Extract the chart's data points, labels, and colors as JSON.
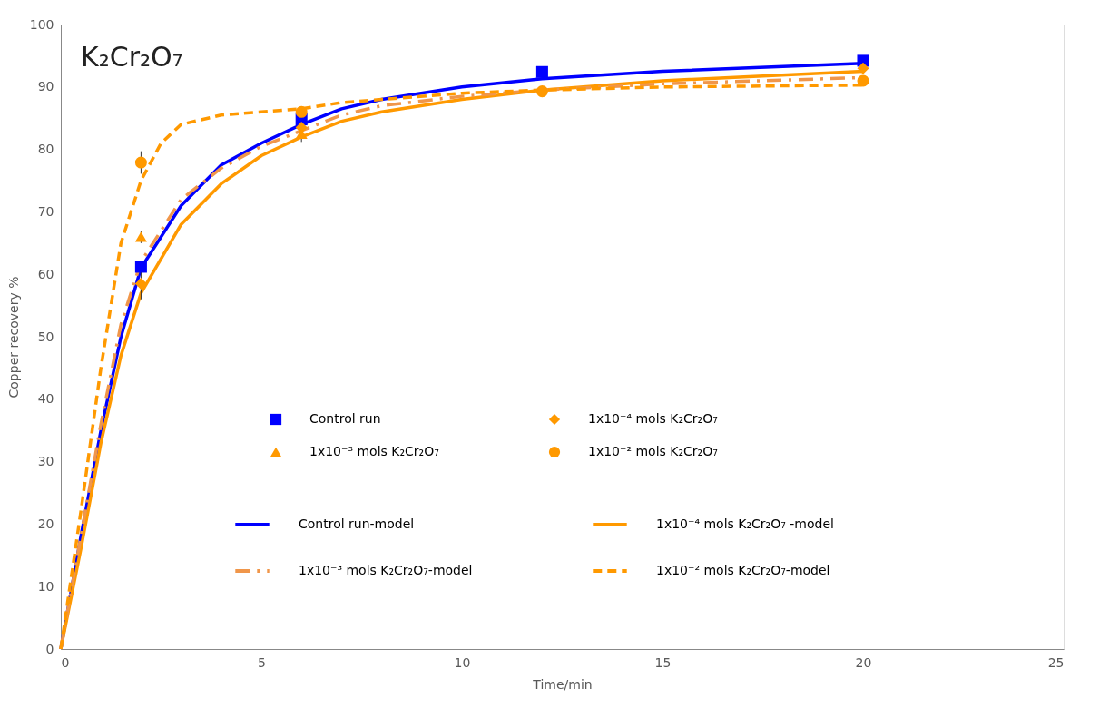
{
  "chart_data": {
    "type": "line",
    "xlabel": "Time/min",
    "ylabel": "Copper recovery %",
    "annotations": [
      "K₂Cr₂O₇"
    ],
    "xlim": [
      0,
      25
    ],
    "xticks": [
      0,
      5,
      10,
      15,
      20,
      25
    ],
    "ylim": [
      0,
      100
    ],
    "yticks": [
      0,
      10,
      20,
      30,
      40,
      50,
      60,
      70,
      80,
      90,
      100
    ],
    "grid": false,
    "legend": "bottom",
    "series": [
      {
        "name": "Control run",
        "type": "scatter",
        "marker": "square",
        "color": "#0000ff",
        "x": [
          2,
          6,
          12,
          20
        ],
        "values": [
          61.2,
          84.8,
          92.4,
          94.2
        ]
      },
      {
        "name": "1x10⁻⁴ mols K₂Cr₂O₇",
        "type": "scatter",
        "marker": "diamond",
        "color": "#ff9900",
        "x": [
          2,
          6,
          12,
          20
        ],
        "values": [
          58.5,
          83.5,
          null,
          93
        ],
        "errors": [
          2.5,
          null,
          null,
          null
        ]
      },
      {
        "name": "1x10⁻³ mols K₂Cr₂O₇",
        "type": "scatter",
        "marker": "triangle",
        "color": "#ff9900",
        "x": [
          2,
          6
        ],
        "values": [
          66,
          82.5
        ],
        "errors": [
          1,
          1.3
        ]
      },
      {
        "name": "1x10⁻² mols K₂Cr₂O₇",
        "type": "scatter",
        "marker": "circle",
        "color": "#ff9900",
        "x": [
          2,
          6,
          12,
          20
        ],
        "values": [
          77.9,
          86,
          89.3,
          91
        ],
        "errors": [
          1.8,
          null,
          null,
          null
        ]
      },
      {
        "name": "Control run-model",
        "line_style": "solid",
        "color": "#0000ff",
        "x": [
          0,
          0.5,
          1,
          1.5,
          2,
          3,
          4,
          5,
          6,
          7,
          8,
          10,
          12,
          15,
          20
        ],
        "values": [
          0,
          18,
          35,
          50,
          61,
          71,
          77.5,
          81,
          84,
          86.5,
          88,
          90,
          91.3,
          92.5,
          93.8
        ]
      },
      {
        "name": "1x10⁻⁴ mols K₂Cr₂O₇ -model",
        "line_style": "solid",
        "color": "#ff9900",
        "x": [
          0,
          0.5,
          1,
          1.5,
          2,
          3,
          4,
          5,
          6,
          7,
          8,
          10,
          12,
          15,
          20
        ],
        "values": [
          0,
          16,
          33,
          47,
          57,
          68,
          74.5,
          79,
          82,
          84.5,
          86,
          88,
          89.5,
          91,
          92.5
        ]
      },
      {
        "name": "1x10⁻³ mols K₂Cr₂O₇-model",
        "line_style": "dashdot",
        "color": "#f0964a",
        "x": [
          0,
          0.5,
          1,
          1.5,
          2,
          3,
          4,
          5,
          6,
          7,
          8,
          10,
          12,
          15,
          20
        ],
        "values": [
          0,
          18,
          36,
          52,
          62,
          72,
          77,
          80.5,
          83,
          85.5,
          87,
          88.5,
          89.5,
          90.5,
          91.5
        ]
      },
      {
        "name": "1x10⁻² mols K₂Cr₂O₇-model",
        "line_style": "dashed",
        "color": "#ff9900",
        "x": [
          0,
          0.5,
          1,
          1.5,
          2,
          2.5,
          3,
          4,
          5,
          6,
          7,
          8,
          10,
          12,
          15,
          20
        ],
        "values": [
          0,
          22,
          45,
          65,
          75,
          81,
          84,
          85.5,
          86,
          86.5,
          87.5,
          88,
          89,
          89.5,
          90,
          90.3
        ]
      }
    ]
  }
}
